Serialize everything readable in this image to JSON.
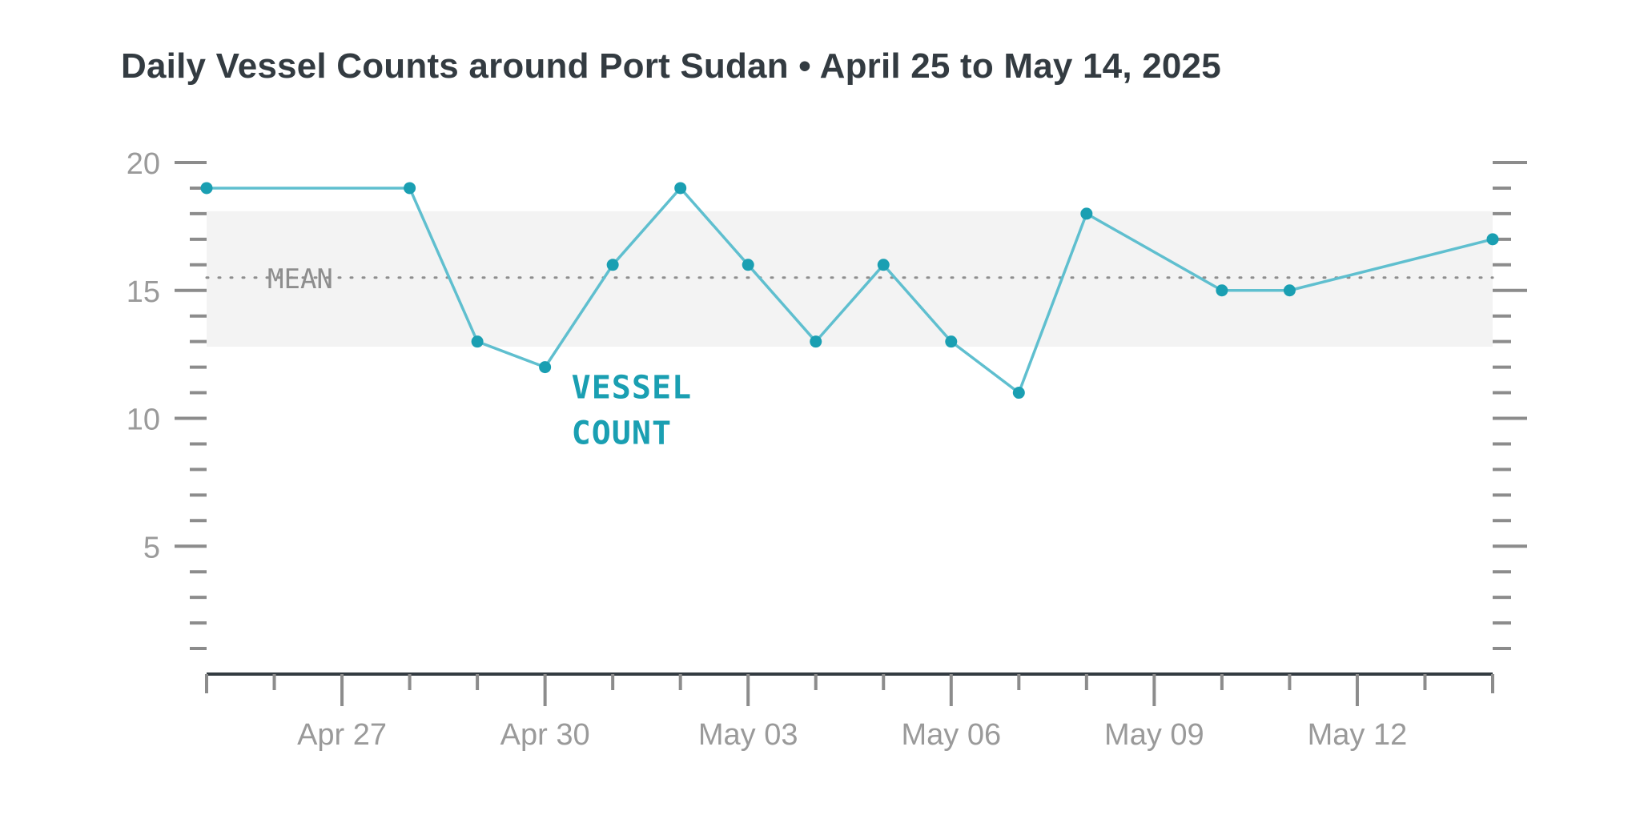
{
  "chart_data": {
    "type": "line",
    "title": "Daily Vessel Counts around Port Sudan • April 25 to May 14, 2025",
    "x": [
      "2025-04-25",
      "2025-04-26",
      "2025-04-27",
      "2025-04-28",
      "2025-04-29",
      "2025-04-30",
      "2025-05-01",
      "2025-05-02",
      "2025-05-03",
      "2025-05-04",
      "2025-05-05",
      "2025-05-06",
      "2025-05-07",
      "2025-05-08",
      "2025-05-09",
      "2025-05-10",
      "2025-05-11",
      "2025-05-12",
      "2025-05-13",
      "2025-05-14"
    ],
    "series": [
      {
        "name": "VESSEL COUNT",
        "x": [
          "2025-04-25",
          "2025-04-28",
          "2025-04-29",
          "2025-04-30",
          "2025-05-01",
          "2025-05-02",
          "2025-05-03",
          "2025-05-04",
          "2025-05-05",
          "2025-05-06",
          "2025-05-07",
          "2025-05-08",
          "2025-05-10",
          "2025-05-11",
          "2025-05-14"
        ],
        "values": [
          19,
          19,
          13,
          12,
          16,
          19,
          16,
          13,
          16,
          13,
          11,
          18,
          15,
          15,
          17
        ],
        "color": "#1a9fb2"
      }
    ],
    "mean": {
      "label": "MEAN",
      "value": 15.5
    },
    "band": {
      "low": 12.8,
      "high": 18.1
    },
    "xticks": [
      {
        "date": "2025-04-27",
        "label": "Apr 27"
      },
      {
        "date": "2025-04-30",
        "label": "Apr 30"
      },
      {
        "date": "2025-05-03",
        "label": "May 03"
      },
      {
        "date": "2025-05-06",
        "label": "May 06"
      },
      {
        "date": "2025-05-09",
        "label": "May 09"
      },
      {
        "date": "2025-05-12",
        "label": "May 12"
      }
    ],
    "yticks": [
      5,
      10,
      15,
      20
    ],
    "ylim": [
      0,
      20
    ],
    "xlim": [
      "2025-04-25",
      "2025-05-14"
    ],
    "xlabel": "",
    "ylabel": "",
    "legend": "inline label",
    "grid": false,
    "colors": {
      "line": "#5fbfcf",
      "point": "#1a9fb2",
      "label": "#1a9fb2",
      "band": "#f3f3f3",
      "axis": "#333b41",
      "tick": "#8c8c8c",
      "mean": "#8e8e8e"
    }
  }
}
